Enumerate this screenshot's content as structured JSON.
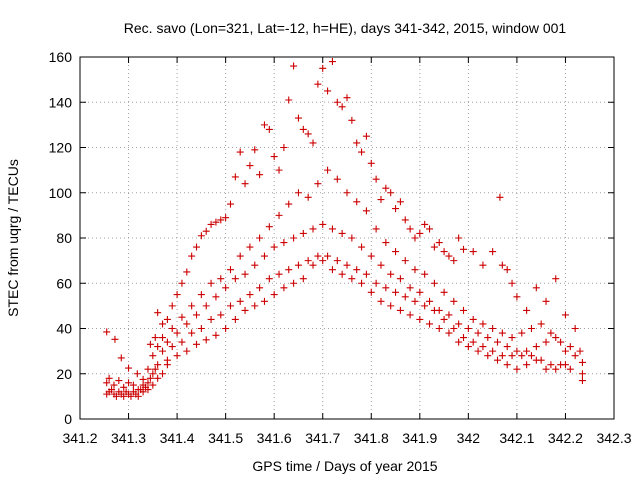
{
  "chart_data": {
    "type": "scatter",
    "title": "Rec. savo (Lon=321, Lat=-12, h=HE), days 341-342, 2015, window 001",
    "xlabel": "GPS time / Days of year 2015",
    "ylabel": "STEC from uqrg / TECUs",
    "xlim": [
      341.2,
      342.3
    ],
    "ylim": [
      0,
      160
    ],
    "xticks": [
      341.2,
      341.3,
      341.4,
      341.5,
      341.6,
      341.7,
      341.8,
      341.9,
      342.0,
      342.1,
      342.2,
      342.3
    ],
    "xtick_labels": [
      "341.2",
      "341.3",
      "341.4",
      "341.5",
      "341.6",
      "341.7",
      "341.8",
      "341.9",
      "342",
      "342.1",
      "342.2",
      "342.3"
    ],
    "yticks": [
      0,
      20,
      40,
      60,
      80,
      100,
      120,
      140,
      160
    ],
    "ytick_labels": [
      "0",
      "20",
      "40",
      "60",
      "80",
      "100",
      "120",
      "140",
      "160"
    ],
    "grid": true,
    "marker": "+",
    "color": "#cc0000",
    "series": [
      {
        "points": [
          [
            341.255,
            38.5
          ],
          [
            341.272,
            35.2
          ],
          [
            341.285,
            27
          ],
          [
            341.3,
            22.5
          ],
          [
            341.318,
            20
          ],
          [
            341.33,
            17.5
          ],
          [
            341.345,
            33
          ],
          [
            341.355,
            36
          ],
          [
            341.36,
            47
          ],
          [
            341.37,
            42
          ],
          [
            341.38,
            44
          ],
          [
            341.39,
            50
          ],
          [
            341.4,
            55
          ],
          [
            341.41,
            60
          ],
          [
            341.42,
            65
          ],
          [
            341.43,
            72
          ],
          [
            341.44,
            76
          ],
          [
            341.45,
            81
          ],
          [
            341.46,
            83
          ],
          [
            341.47,
            86
          ],
          [
            341.48,
            87
          ],
          [
            341.49,
            88
          ],
          [
            341.5,
            89
          ],
          [
            341.51,
            95
          ],
          [
            341.52,
            107
          ],
          [
            341.53,
            118
          ],
          [
            341.54,
            104
          ],
          [
            341.55,
            112
          ],
          [
            341.56,
            119
          ],
          [
            341.57,
            108
          ],
          [
            341.58,
            130
          ],
          [
            341.59,
            128
          ],
          [
            341.6,
            116
          ],
          [
            341.61,
            110
          ],
          [
            341.62,
            120
          ],
          [
            341.63,
            141
          ],
          [
            341.64,
            156
          ],
          [
            341.65,
            133
          ],
          [
            341.66,
            128
          ],
          [
            341.67,
            126
          ],
          [
            341.68,
            122
          ],
          [
            341.69,
            148
          ],
          [
            341.7,
            155
          ],
          [
            341.71,
            145
          ],
          [
            341.72,
            158
          ],
          [
            341.73,
            140
          ],
          [
            341.74,
            138
          ],
          [
            341.75,
            142
          ],
          [
            341.76,
            132
          ],
          [
            341.77,
            122
          ],
          [
            341.78,
            118
          ],
          [
            341.79,
            125
          ],
          [
            341.8,
            113
          ],
          [
            341.81,
            106
          ],
          [
            341.82,
            97
          ],
          [
            341.83,
            102
          ],
          [
            341.84,
            100
          ],
          [
            341.85,
            93
          ],
          [
            341.86,
            96
          ],
          [
            341.87,
            88
          ],
          [
            341.88,
            84
          ],
          [
            341.89,
            80
          ],
          [
            341.9,
            82
          ],
          [
            341.91,
            86
          ],
          [
            341.92,
            84
          ],
          [
            341.93,
            76
          ],
          [
            341.94,
            78
          ],
          [
            341.95,
            74
          ],
          [
            341.96,
            72
          ],
          [
            341.97,
            70
          ],
          [
            341.98,
            80
          ],
          [
            341.99,
            75
          ],
          [
            342.01,
            74
          ],
          [
            342.03,
            68
          ],
          [
            342.05,
            74
          ],
          [
            342.065,
            98
          ],
          [
            342.07,
            68
          ],
          [
            342.08,
            66
          ],
          [
            342.09,
            60
          ],
          [
            342.1,
            54
          ],
          [
            342.12,
            48
          ],
          [
            342.14,
            58
          ],
          [
            342.16,
            52
          ],
          [
            342.18,
            62
          ],
          [
            342.2,
            46
          ],
          [
            342.22,
            40
          ],
          [
            341.37,
            36
          ],
          [
            341.39,
            40
          ],
          [
            341.41,
            45
          ],
          [
            341.43,
            50
          ],
          [
            341.45,
            55
          ],
          [
            341.47,
            60
          ],
          [
            341.49,
            62
          ],
          [
            341.51,
            66
          ],
          [
            341.53,
            72
          ],
          [
            341.55,
            76
          ],
          [
            341.57,
            80
          ],
          [
            341.59,
            85
          ],
          [
            341.61,
            90
          ],
          [
            341.63,
            95
          ],
          [
            341.65,
            100
          ],
          [
            341.67,
            98
          ],
          [
            341.69,
            104
          ],
          [
            341.71,
            110
          ],
          [
            341.73,
            106
          ],
          [
            341.75,
            100
          ],
          [
            341.77,
            96
          ],
          [
            341.79,
            92
          ],
          [
            341.81,
            84
          ],
          [
            341.83,
            78
          ],
          [
            341.85,
            74
          ],
          [
            341.87,
            70
          ],
          [
            341.89,
            66
          ],
          [
            341.91,
            64
          ],
          [
            341.93,
            60
          ],
          [
            341.95,
            56
          ],
          [
            341.97,
            52
          ],
          [
            341.99,
            48
          ],
          [
            342.01,
            44
          ],
          [
            342.03,
            42
          ],
          [
            342.05,
            40
          ],
          [
            342.07,
            38
          ],
          [
            342.09,
            36
          ],
          [
            342.11,
            38
          ],
          [
            342.13,
            40
          ],
          [
            342.15,
            42
          ],
          [
            342.17,
            38
          ],
          [
            342.19,
            34
          ],
          [
            342.21,
            32
          ],
          [
            342.23,
            30
          ],
          [
            341.36,
            32
          ],
          [
            341.38,
            34
          ],
          [
            341.4,
            38
          ],
          [
            341.42,
            42
          ],
          [
            341.44,
            46
          ],
          [
            341.46,
            50
          ],
          [
            341.48,
            54
          ],
          [
            341.5,
            58
          ],
          [
            341.52,
            62
          ],
          [
            341.54,
            64
          ],
          [
            341.56,
            68
          ],
          [
            341.58,
            72
          ],
          [
            341.6,
            76
          ],
          [
            341.62,
            78
          ],
          [
            341.64,
            80
          ],
          [
            341.66,
            82
          ],
          [
            341.68,
            84
          ],
          [
            341.7,
            86
          ],
          [
            341.72,
            84
          ],
          [
            341.74,
            82
          ],
          [
            341.76,
            80
          ],
          [
            341.78,
            76
          ],
          [
            341.8,
            72
          ],
          [
            341.82,
            68
          ],
          [
            341.84,
            64
          ],
          [
            341.86,
            62
          ],
          [
            341.88,
            58
          ],
          [
            341.9,
            56
          ],
          [
            341.92,
            52
          ],
          [
            341.94,
            48
          ],
          [
            341.96,
            46
          ],
          [
            341.98,
            42
          ],
          [
            342.0,
            40
          ],
          [
            342.02,
            38
          ],
          [
            342.04,
            36
          ],
          [
            342.06,
            34
          ],
          [
            342.08,
            32
          ],
          [
            342.1,
            30
          ],
          [
            342.12,
            30
          ],
          [
            342.14,
            32
          ],
          [
            342.16,
            34
          ],
          [
            342.18,
            36
          ],
          [
            342.2,
            30
          ],
          [
            342.22,
            28
          ],
          [
            342.235,
            25
          ],
          [
            341.35,
            28
          ],
          [
            341.37,
            30
          ],
          [
            341.39,
            32
          ],
          [
            341.41,
            34
          ],
          [
            341.43,
            38
          ],
          [
            341.45,
            40
          ],
          [
            341.47,
            44
          ],
          [
            341.49,
            46
          ],
          [
            341.51,
            50
          ],
          [
            341.53,
            52
          ],
          [
            341.55,
            55
          ],
          [
            341.57,
            58
          ],
          [
            341.59,
            62
          ],
          [
            341.61,
            64
          ],
          [
            341.63,
            66
          ],
          [
            341.65,
            68
          ],
          [
            341.67,
            70
          ],
          [
            341.69,
            72
          ],
          [
            341.71,
            72
          ],
          [
            341.73,
            70
          ],
          [
            341.75,
            68
          ],
          [
            341.77,
            66
          ],
          [
            341.79,
            64
          ],
          [
            341.81,
            60
          ],
          [
            341.83,
            58
          ],
          [
            341.85,
            56
          ],
          [
            341.87,
            54
          ],
          [
            341.89,
            52
          ],
          [
            341.91,
            50
          ],
          [
            341.93,
            48
          ],
          [
            341.95,
            44
          ],
          [
            341.97,
            40
          ],
          [
            341.99,
            36
          ],
          [
            342.01,
            34
          ],
          [
            342.03,
            32
          ],
          [
            342.05,
            30
          ],
          [
            342.07,
            28
          ],
          [
            342.09,
            28
          ],
          [
            342.11,
            28
          ],
          [
            342.13,
            28
          ],
          [
            342.15,
            26
          ],
          [
            342.17,
            24
          ],
          [
            342.19,
            24
          ],
          [
            342.21,
            22
          ],
          [
            342.235,
            20
          ],
          [
            341.34,
            22
          ],
          [
            341.36,
            24
          ],
          [
            341.38,
            26
          ],
          [
            341.4,
            28
          ],
          [
            341.42,
            30
          ],
          [
            341.44,
            33
          ],
          [
            341.46,
            35
          ],
          [
            341.48,
            37
          ],
          [
            341.5,
            40
          ],
          [
            341.52,
            44
          ],
          [
            341.54,
            48
          ],
          [
            341.56,
            50
          ],
          [
            341.58,
            52
          ],
          [
            341.6,
            55
          ],
          [
            341.62,
            58
          ],
          [
            341.64,
            60
          ],
          [
            341.66,
            62
          ],
          [
            341.68,
            68
          ],
          [
            341.7,
            70
          ],
          [
            341.72,
            66
          ],
          [
            341.74,
            64
          ],
          [
            341.76,
            62
          ],
          [
            341.78,
            60
          ],
          [
            341.8,
            56
          ],
          [
            341.82,
            52
          ],
          [
            341.84,
            50
          ],
          [
            341.86,
            48
          ],
          [
            341.88,
            46
          ],
          [
            341.9,
            44
          ],
          [
            341.92,
            42
          ],
          [
            341.94,
            40
          ],
          [
            341.96,
            38
          ],
          [
            341.98,
            34
          ],
          [
            342.0,
            32
          ],
          [
            342.02,
            30
          ],
          [
            342.04,
            28
          ],
          [
            342.06,
            26
          ],
          [
            342.08,
            24
          ],
          [
            342.1,
            22
          ],
          [
            342.12,
            24
          ],
          [
            342.14,
            26
          ],
          [
            342.16,
            22
          ],
          [
            342.18,
            22
          ],
          [
            342.2,
            24
          ],
          [
            342.235,
            17
          ],
          [
            341.255,
            11
          ],
          [
            341.26,
            12
          ],
          [
            341.265,
            13
          ],
          [
            341.27,
            11
          ],
          [
            341.275,
            10
          ],
          [
            341.28,
            12
          ],
          [
            341.285,
            11
          ],
          [
            341.29,
            10
          ],
          [
            341.295,
            12
          ],
          [
            341.3,
            11
          ],
          [
            341.305,
            10
          ],
          [
            341.31,
            12
          ],
          [
            341.315,
            11
          ],
          [
            341.32,
            10
          ],
          [
            341.325,
            13
          ],
          [
            341.33,
            12
          ],
          [
            341.335,
            14
          ],
          [
            341.34,
            16
          ],
          [
            341.345,
            18
          ],
          [
            341.35,
            20
          ],
          [
            341.355,
            22
          ],
          [
            341.255,
            16
          ],
          [
            341.26,
            18
          ],
          [
            341.27,
            15
          ],
          [
            341.28,
            17
          ],
          [
            341.29,
            14
          ],
          [
            341.3,
            16
          ],
          [
            341.31,
            15
          ],
          [
            341.32,
            13
          ],
          [
            341.33,
            15
          ],
          [
            341.34,
            13
          ],
          [
            341.35,
            15
          ],
          [
            341.36,
            18
          ],
          [
            341.37,
            20
          ],
          [
            341.38,
            24
          ]
        ]
      }
    ]
  }
}
